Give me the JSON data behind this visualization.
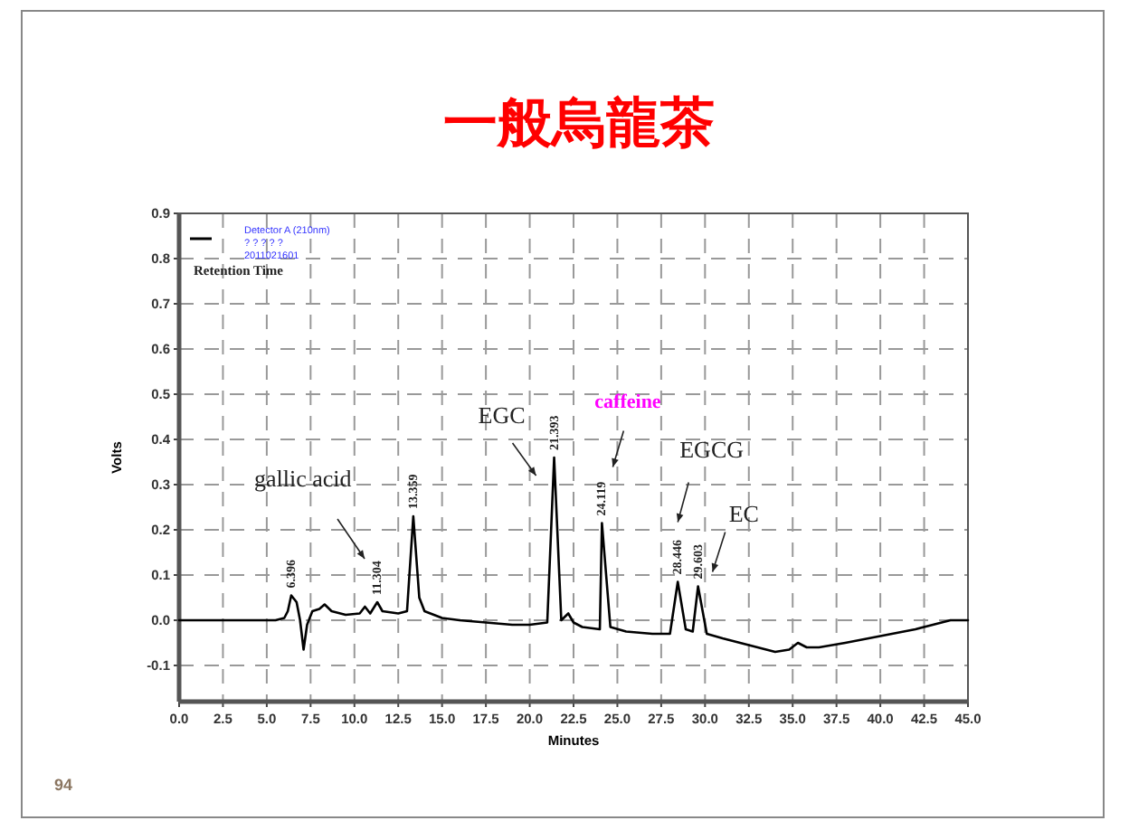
{
  "chart_data": {
    "type": "line",
    "title": "一般烏龍茶",
    "xlabel": "Minutes",
    "ylabel": "Volts",
    "xlim": [
      0,
      45
    ],
    "ylim": [
      -0.18,
      0.9
    ],
    "xticks": [
      {
        "value": 0,
        "label": "0.0"
      },
      2.5,
      {
        "value": 5,
        "label": "5.0"
      },
      7.5,
      {
        "value": 10,
        "label": "10.0"
      },
      12.5,
      {
        "value": 15,
        "label": "15.0"
      },
      17.5,
      {
        "value": 20,
        "label": "20.0"
      },
      22.5,
      {
        "value": 25,
        "label": "25.0"
      },
      27.5,
      {
        "value": 30,
        "label": "30.0"
      },
      32.5,
      {
        "value": 35,
        "label": "35.0"
      },
      37.5,
      {
        "value": 40,
        "label": "40.0"
      },
      42.5,
      {
        "value": 45,
        "label": "45.0"
      }
    ],
    "yticks": [
      -0.1,
      {
        "value": 0,
        "label": "0.0"
      },
      0.1,
      0.2,
      0.3,
      0.4,
      0.5,
      0.6,
      0.7,
      0.8,
      0.9
    ],
    "grid": true,
    "legend": "top left",
    "line_style": "solid",
    "marker": "none",
    "series": [
      {
        "name": "Detector A (210nm)",
        "color": "#000000",
        "x": [
          0,
          5.5,
          6.0,
          6.2,
          6.396,
          6.7,
          6.9,
          7.1,
          7.3,
          7.6,
          8.0,
          8.3,
          8.7,
          9.5,
          10.3,
          10.6,
          10.9,
          11.304,
          11.6,
          12.5,
          13.0,
          13.359,
          13.7,
          14.0,
          15.0,
          16.0,
          17.5,
          19.0,
          20.0,
          21.0,
          21.393,
          21.8,
          22.2,
          22.5,
          23.0,
          24.0,
          24.119,
          24.6,
          25.5,
          27.0,
          28.0,
          28.446,
          28.9,
          29.3,
          29.603,
          30.1,
          31.0,
          32.5,
          34.0,
          34.8,
          35.3,
          35.8,
          36.5,
          38.0,
          40.0,
          42.0,
          43.0,
          44.0,
          45.0
        ],
        "values": [
          0,
          0,
          0.005,
          0.02,
          0.055,
          0.04,
          0.0,
          -0.065,
          -0.01,
          0.02,
          0.025,
          0.035,
          0.02,
          0.012,
          0.015,
          0.03,
          0.015,
          0.04,
          0.02,
          0.015,
          0.02,
          0.23,
          0.05,
          0.02,
          0.005,
          0.0,
          -0.005,
          -0.01,
          -0.01,
          -0.005,
          0.36,
          0.0,
          0.015,
          -0.005,
          -0.015,
          -0.02,
          0.215,
          -0.015,
          -0.025,
          -0.03,
          -0.03,
          0.085,
          -0.02,
          -0.025,
          0.075,
          -0.03,
          -0.04,
          -0.055,
          -0.07,
          -0.065,
          -0.05,
          -0.06,
          -0.06,
          -0.05,
          -0.035,
          -0.02,
          -0.01,
          0.0,
          0.0
        ]
      }
    ],
    "annotations": [
      {
        "text": "6.396",
        "x": 6.396,
        "y": 0.055
      },
      {
        "text": "11.304",
        "x": 11.304,
        "y": 0.04
      },
      {
        "text": "13.359",
        "x": 13.359,
        "y": 0.23
      },
      {
        "text": "21.393",
        "x": 21.393,
        "y": 0.36
      },
      {
        "text": "24.119",
        "x": 24.119,
        "y": 0.215
      },
      {
        "text": "28.446",
        "x": 28.446,
        "y": 0.085
      },
      {
        "text": "29.603",
        "x": 29.603,
        "y": 0.075
      },
      "gallic acid",
      "EGC",
      "caffeine",
      "EGCG",
      "EC",
      "? ? ? ? ?",
      "2011021601",
      "Retention Time",
      "94"
    ]
  }
}
